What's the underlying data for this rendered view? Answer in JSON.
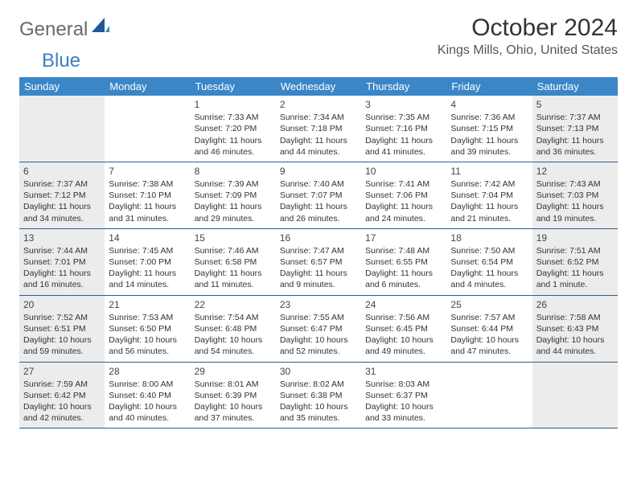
{
  "brand": {
    "part1": "General",
    "part2": "Blue"
  },
  "title": "October 2024",
  "location": "Kings Mills, Ohio, United States",
  "day_names": [
    "Sunday",
    "Monday",
    "Tuesday",
    "Wednesday",
    "Thursday",
    "Friday",
    "Saturday"
  ],
  "colors": {
    "header_bg": "#3b86c7",
    "week_border": "#2d5f8c",
    "shaded_bg": "#ececec",
    "logo_gray": "#6a6a6a",
    "logo_blue": "#3b7fc4"
  },
  "weeks": [
    [
      {
        "empty": true
      },
      {
        "empty": true
      },
      {
        "num": "1",
        "sunrise": "Sunrise: 7:33 AM",
        "sunset": "Sunset: 7:20 PM",
        "daylight": "Daylight: 11 hours and 46 minutes."
      },
      {
        "num": "2",
        "sunrise": "Sunrise: 7:34 AM",
        "sunset": "Sunset: 7:18 PM",
        "daylight": "Daylight: 11 hours and 44 minutes."
      },
      {
        "num": "3",
        "sunrise": "Sunrise: 7:35 AM",
        "sunset": "Sunset: 7:16 PM",
        "daylight": "Daylight: 11 hours and 41 minutes."
      },
      {
        "num": "4",
        "sunrise": "Sunrise: 7:36 AM",
        "sunset": "Sunset: 7:15 PM",
        "daylight": "Daylight: 11 hours and 39 minutes."
      },
      {
        "num": "5",
        "sunrise": "Sunrise: 7:37 AM",
        "sunset": "Sunset: 7:13 PM",
        "daylight": "Daylight: 11 hours and 36 minutes."
      }
    ],
    [
      {
        "num": "6",
        "sunrise": "Sunrise: 7:37 AM",
        "sunset": "Sunset: 7:12 PM",
        "daylight": "Daylight: 11 hours and 34 minutes."
      },
      {
        "num": "7",
        "sunrise": "Sunrise: 7:38 AM",
        "sunset": "Sunset: 7:10 PM",
        "daylight": "Daylight: 11 hours and 31 minutes."
      },
      {
        "num": "8",
        "sunrise": "Sunrise: 7:39 AM",
        "sunset": "Sunset: 7:09 PM",
        "daylight": "Daylight: 11 hours and 29 minutes."
      },
      {
        "num": "9",
        "sunrise": "Sunrise: 7:40 AM",
        "sunset": "Sunset: 7:07 PM",
        "daylight": "Daylight: 11 hours and 26 minutes."
      },
      {
        "num": "10",
        "sunrise": "Sunrise: 7:41 AM",
        "sunset": "Sunset: 7:06 PM",
        "daylight": "Daylight: 11 hours and 24 minutes."
      },
      {
        "num": "11",
        "sunrise": "Sunrise: 7:42 AM",
        "sunset": "Sunset: 7:04 PM",
        "daylight": "Daylight: 11 hours and 21 minutes."
      },
      {
        "num": "12",
        "sunrise": "Sunrise: 7:43 AM",
        "sunset": "Sunset: 7:03 PM",
        "daylight": "Daylight: 11 hours and 19 minutes."
      }
    ],
    [
      {
        "num": "13",
        "sunrise": "Sunrise: 7:44 AM",
        "sunset": "Sunset: 7:01 PM",
        "daylight": "Daylight: 11 hours and 16 minutes."
      },
      {
        "num": "14",
        "sunrise": "Sunrise: 7:45 AM",
        "sunset": "Sunset: 7:00 PM",
        "daylight": "Daylight: 11 hours and 14 minutes."
      },
      {
        "num": "15",
        "sunrise": "Sunrise: 7:46 AM",
        "sunset": "Sunset: 6:58 PM",
        "daylight": "Daylight: 11 hours and 11 minutes."
      },
      {
        "num": "16",
        "sunrise": "Sunrise: 7:47 AM",
        "sunset": "Sunset: 6:57 PM",
        "daylight": "Daylight: 11 hours and 9 minutes."
      },
      {
        "num": "17",
        "sunrise": "Sunrise: 7:48 AM",
        "sunset": "Sunset: 6:55 PM",
        "daylight": "Daylight: 11 hours and 6 minutes."
      },
      {
        "num": "18",
        "sunrise": "Sunrise: 7:50 AM",
        "sunset": "Sunset: 6:54 PM",
        "daylight": "Daylight: 11 hours and 4 minutes."
      },
      {
        "num": "19",
        "sunrise": "Sunrise: 7:51 AM",
        "sunset": "Sunset: 6:52 PM",
        "daylight": "Daylight: 11 hours and 1 minute."
      }
    ],
    [
      {
        "num": "20",
        "sunrise": "Sunrise: 7:52 AM",
        "sunset": "Sunset: 6:51 PM",
        "daylight": "Daylight: 10 hours and 59 minutes."
      },
      {
        "num": "21",
        "sunrise": "Sunrise: 7:53 AM",
        "sunset": "Sunset: 6:50 PM",
        "daylight": "Daylight: 10 hours and 56 minutes."
      },
      {
        "num": "22",
        "sunrise": "Sunrise: 7:54 AM",
        "sunset": "Sunset: 6:48 PM",
        "daylight": "Daylight: 10 hours and 54 minutes."
      },
      {
        "num": "23",
        "sunrise": "Sunrise: 7:55 AM",
        "sunset": "Sunset: 6:47 PM",
        "daylight": "Daylight: 10 hours and 52 minutes."
      },
      {
        "num": "24",
        "sunrise": "Sunrise: 7:56 AM",
        "sunset": "Sunset: 6:45 PM",
        "daylight": "Daylight: 10 hours and 49 minutes."
      },
      {
        "num": "25",
        "sunrise": "Sunrise: 7:57 AM",
        "sunset": "Sunset: 6:44 PM",
        "daylight": "Daylight: 10 hours and 47 minutes."
      },
      {
        "num": "26",
        "sunrise": "Sunrise: 7:58 AM",
        "sunset": "Sunset: 6:43 PM",
        "daylight": "Daylight: 10 hours and 44 minutes."
      }
    ],
    [
      {
        "num": "27",
        "sunrise": "Sunrise: 7:59 AM",
        "sunset": "Sunset: 6:42 PM",
        "daylight": "Daylight: 10 hours and 42 minutes."
      },
      {
        "num": "28",
        "sunrise": "Sunrise: 8:00 AM",
        "sunset": "Sunset: 6:40 PM",
        "daylight": "Daylight: 10 hours and 40 minutes."
      },
      {
        "num": "29",
        "sunrise": "Sunrise: 8:01 AM",
        "sunset": "Sunset: 6:39 PM",
        "daylight": "Daylight: 10 hours and 37 minutes."
      },
      {
        "num": "30",
        "sunrise": "Sunrise: 8:02 AM",
        "sunset": "Sunset: 6:38 PM",
        "daylight": "Daylight: 10 hours and 35 minutes."
      },
      {
        "num": "31",
        "sunrise": "Sunrise: 8:03 AM",
        "sunset": "Sunset: 6:37 PM",
        "daylight": "Daylight: 10 hours and 33 minutes."
      },
      {
        "empty": true
      },
      {
        "empty": true
      }
    ]
  ]
}
